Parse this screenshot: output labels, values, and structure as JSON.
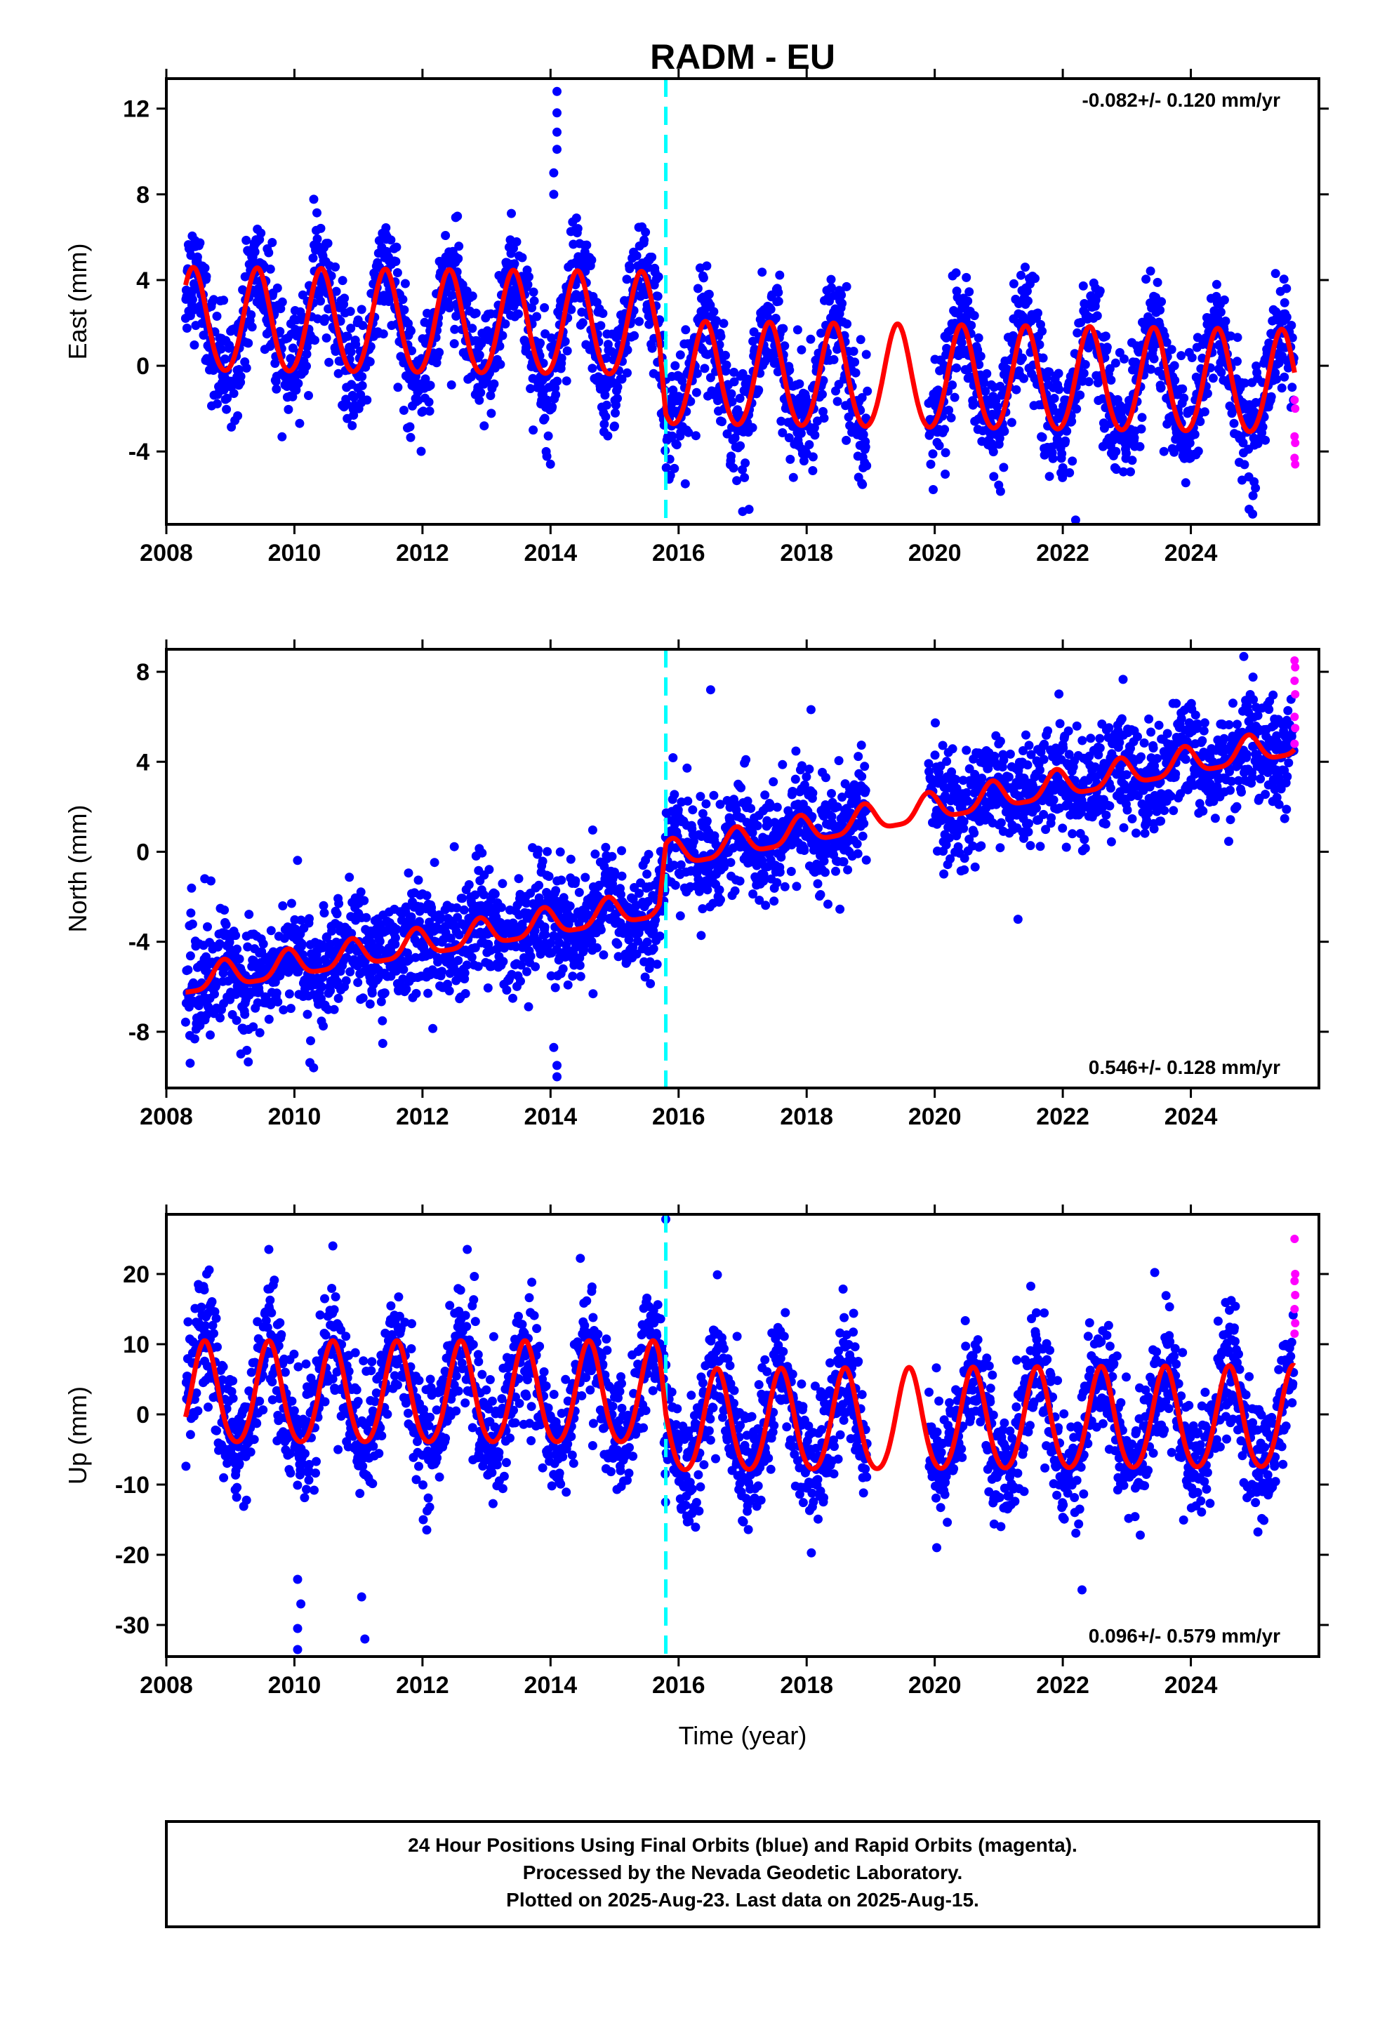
{
  "title": "RADM - EU",
  "xlabel": "Time (year)",
  "footer": [
    "24 Hour Positions Using Final Orbits (blue) and Rapid Orbits (magenta).",
    "Processed by the Nevada Geodetic Laboratory.",
    "Plotted on 2025-Aug-23. Last data on 2025-Aug-15."
  ],
  "colors": {
    "final": "#0000ff",
    "rapid": "#ff00ff",
    "model": "#ff0000",
    "event": "#00ffff"
  },
  "chart_data": [
    {
      "type": "scatter",
      "component": "East",
      "ylabel": "East (mm)",
      "rate_label": "-0.082+/- 0.120 mm/yr",
      "rate_position": "top-right",
      "xlim": [
        2008.0,
        2026.0
      ],
      "ylim": [
        -7.4,
        13.4
      ],
      "xticks": [
        "2008",
        "2010",
        "2012",
        "2014",
        "2016",
        "2018",
        "2020",
        "2022",
        "2024"
      ],
      "yticks": [
        -4,
        0,
        4,
        8,
        12
      ],
      "event_line_x": 2015.8,
      "data_start": 2008.3,
      "data_end": 2025.62,
      "data_gap": [
        2018.95,
        2019.9
      ],
      "series": [
        {
          "name": "Final Orbits (blue)",
          "trend": [
            [
              2008.3,
              1.8
            ],
            [
              2015.7,
              1.8
            ],
            [
              2015.8,
              -0.5
            ],
            [
              2025.6,
              -0.9
            ]
          ],
          "scatter_sd": 1.3,
          "outliers": [
            [
              2014.1,
              12.8
            ],
            [
              2014.1,
              11.8
            ],
            [
              2014.1,
              10.9
            ],
            [
              2014.1,
              10.1
            ],
            [
              2014.05,
              9.0
            ],
            [
              2014.05,
              8.0
            ],
            [
              2022.2,
              -7.2
            ],
            [
              2017.0,
              -6.8
            ],
            [
              2017.1,
              -6.7
            ]
          ]
        },
        {
          "name": "Rapid Orbits (magenta)",
          "points": [
            [
              2025.62,
              -1.6
            ],
            [
              2025.63,
              -2.0
            ],
            [
              2025.62,
              -3.3
            ],
            [
              2025.63,
              -3.6
            ],
            [
              2025.62,
              -4.3
            ],
            [
              2025.63,
              -4.6
            ]
          ]
        },
        {
          "name": "model",
          "trend": [
            [
              2008.3,
              2.0
            ],
            [
              2015.7,
              1.8
            ],
            [
              2015.8,
              -0.5
            ],
            [
              2025.6,
              -0.9
            ]
          ],
          "amp1": 2.4,
          "phase_peak": 0.42,
          "amp2": 0.2
        }
      ]
    },
    {
      "type": "scatter",
      "component": "North",
      "ylabel": "North (mm)",
      "rate_label": "0.546+/- 0.128 mm/yr",
      "rate_position": "bottom-right",
      "xlim": [
        2008.0,
        2026.0
      ],
      "ylim": [
        -10.5,
        9.0
      ],
      "xticks": [
        "2008",
        "2010",
        "2012",
        "2014",
        "2016",
        "2018",
        "2020",
        "2022",
        "2024"
      ],
      "yticks": [
        -8,
        -4,
        0,
        4,
        8
      ],
      "event_line_x": 2015.8,
      "data_start": 2008.3,
      "data_end": 2025.62,
      "data_gap": [
        2018.95,
        2019.9
      ],
      "series": [
        {
          "name": "Final Orbits (blue)",
          "trend": [
            [
              2008.3,
              -5.8
            ],
            [
              2015.7,
              -2.4
            ],
            [
              2015.8,
              -0.2
            ],
            [
              2025.6,
              4.8
            ]
          ],
          "scatter_sd": 1.2,
          "outliers": [
            [
              2014.1,
              -10.0
            ],
            [
              2014.1,
              -9.5
            ],
            [
              2014.05,
              -8.7
            ],
            [
              2010.3,
              -9.6
            ],
            [
              2016.5,
              7.2
            ],
            [
              2021.3,
              -3.0
            ],
            [
              2008.6,
              -1.2
            ]
          ]
        },
        {
          "name": "Rapid Orbits (magenta)",
          "points": [
            [
              2025.62,
              8.5
            ],
            [
              2025.63,
              8.2
            ],
            [
              2025.62,
              7.6
            ],
            [
              2025.63,
              7.0
            ],
            [
              2025.62,
              6.0
            ],
            [
              2025.63,
              5.5
            ],
            [
              2025.62,
              4.8
            ]
          ]
        },
        {
          "name": "model",
          "trend": [
            [
              2008.3,
              -5.8
            ],
            [
              2015.7,
              -2.4
            ],
            [
              2015.8,
              -0.2
            ],
            [
              2025.6,
              4.8
            ]
          ],
          "amp1": 0.6,
          "phase_peak": 0.9,
          "amp2": 0.15
        }
      ]
    },
    {
      "type": "scatter",
      "component": "Up",
      "ylabel": "Up (mm)",
      "rate_label": "0.096+/- 0.579 mm/yr",
      "rate_position": "bottom-right",
      "xlim": [
        2008.0,
        2026.0
      ],
      "ylim": [
        -34.5,
        28.5
      ],
      "xticks": [
        "2008",
        "2010",
        "2012",
        "2014",
        "2016",
        "2018",
        "2020",
        "2022",
        "2024"
      ],
      "yticks": [
        -30,
        -20,
        -10,
        0,
        10,
        20
      ],
      "event_line_x": 2015.8,
      "data_start": 2008.3,
      "data_end": 2025.62,
      "data_gap": [
        2018.95,
        2019.9
      ],
      "series": [
        {
          "name": "Final Orbits (blue)",
          "trend": [
            [
              2008.3,
              2.5
            ],
            [
              2015.7,
              2.5
            ],
            [
              2015.8,
              -1.5
            ],
            [
              2025.6,
              -1.0
            ]
          ],
          "scatter_sd": 4.2,
          "outliers": [
            [
              2010.05,
              -33.5
            ],
            [
              2010.05,
              -30.5
            ],
            [
              2010.1,
              -27.0
            ],
            [
              2010.05,
              -23.5
            ],
            [
              2011.1,
              -32.0
            ],
            [
              2011.05,
              -26.0
            ],
            [
              2015.8,
              27.8
            ],
            [
              2008.5,
              18.5
            ],
            [
              2009.6,
              23.5
            ],
            [
              2010.6,
              24.0
            ],
            [
              2012.7,
              23.5
            ],
            [
              2022.3,
              -25.0
            ]
          ]
        },
        {
          "name": "Rapid Orbits (magenta)",
          "points": [
            [
              2025.62,
              25.0
            ],
            [
              2025.63,
              20.0
            ],
            [
              2025.62,
              19.0
            ],
            [
              2025.63,
              17.0
            ],
            [
              2025.62,
              15.0
            ],
            [
              2025.63,
              13.0
            ],
            [
              2025.62,
              11.5
            ]
          ]
        },
        {
          "name": "model",
          "trend": [
            [
              2008.3,
              2.5
            ],
            [
              2015.7,
              2.5
            ],
            [
              2015.8,
              -1.5
            ],
            [
              2025.6,
              -1.0
            ]
          ],
          "amp1": 7.2,
          "phase_peak": 0.6,
          "amp2": 0.8
        }
      ]
    }
  ]
}
